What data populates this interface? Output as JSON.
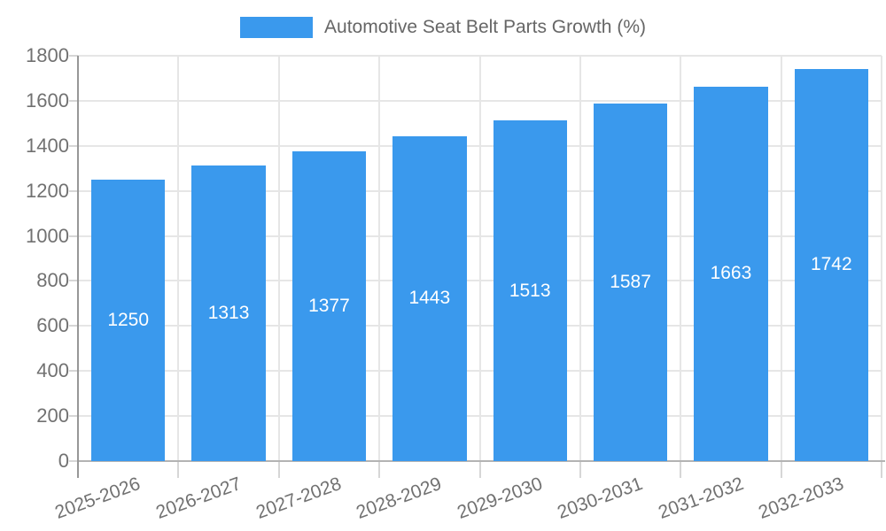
{
  "chart_data": {
    "type": "bar",
    "title": "Automotive Seat Belt Parts Growth (%)",
    "legend": {
      "label": "Automotive Seat Belt Parts Growth (%)",
      "position": "top"
    },
    "categories": [
      "2025-2026",
      "2026-2027",
      "2027-2028",
      "2028-2029",
      "2029-2030",
      "2030-2031",
      "2031-2032",
      "2032-2033"
    ],
    "series": [
      {
        "name": "Automotive Seat Belt Parts Growth (%)",
        "values": [
          1250,
          1313,
          1377,
          1443,
          1513,
          1587,
          1663,
          1742
        ]
      }
    ],
    "value_labels": [
      "1250",
      "1313",
      "1377",
      "1443",
      "1513",
      "1587",
      "1663",
      "1742"
    ],
    "xlabel": "",
    "ylabel": "",
    "ylim": [
      0,
      1800
    ],
    "ytick_step": 200,
    "ytick_labels": [
      "0",
      "200",
      "400",
      "600",
      "800",
      "1000",
      "1200",
      "1400",
      "1600",
      "1800"
    ],
    "grid": true,
    "x_label_rotation_deg": -20,
    "colors": {
      "bar": "#3A99ED",
      "value_label": "#FFFFFF",
      "axis_label": "#717171",
      "legend_text": "#666666",
      "gridline": "#E6E6E6",
      "tick": "#D6D6D6",
      "y_axis_line": "#979797",
      "x_axis_line": "#B3B3B3",
      "background": "#FFFFFF"
    }
  }
}
